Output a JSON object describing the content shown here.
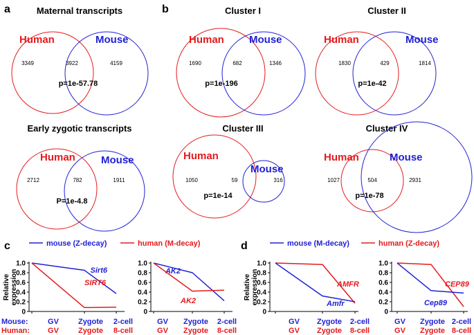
{
  "panels": {
    "a": "a",
    "b": "b",
    "c": "c",
    "d": "d"
  },
  "colors": {
    "human": "#e41a1c",
    "mouse": "#1f1fd6",
    "axis": "#000000"
  },
  "chart_data": [
    {
      "type": "venn",
      "title": "Maternal transcripts",
      "sets": [
        "Human",
        "Mouse"
      ],
      "human_only": "3349",
      "overlap": "3922",
      "mouse_only": "4159",
      "p_value": "p=1e-57.78"
    },
    {
      "type": "venn",
      "title": "Early zygotic transcripts",
      "sets": [
        "Human",
        "Mouse"
      ],
      "human_only": "2712",
      "overlap": "782",
      "mouse_only": "1911",
      "p_value": "P=1e-4.8"
    },
    {
      "type": "venn",
      "title": "Cluster I",
      "sets": [
        "Human",
        "Mouse"
      ],
      "human_only": "1690",
      "overlap": "682",
      "mouse_only": "1346",
      "p_value": "p=1e-196"
    },
    {
      "type": "venn",
      "title": "Cluster II",
      "sets": [
        "Human",
        "Mouse"
      ],
      "human_only": "1830",
      "overlap": "429",
      "mouse_only": "1814",
      "p_value": "p=1e-42"
    },
    {
      "type": "venn",
      "title": "Cluster III",
      "sets": [
        "Human",
        "Mouse"
      ],
      "human_only": "1050",
      "overlap": "59",
      "mouse_only": "316",
      "p_value": "p=1e-14"
    },
    {
      "type": "venn",
      "title": "Cluster IV",
      "sets": [
        "Human",
        "Mouse"
      ],
      "human_only": "1027",
      "overlap": "504",
      "mouse_only": "2931",
      "p_value": "p=1e-78"
    },
    {
      "type": "line",
      "panel": "c",
      "legend": {
        "mouse": "mouse (Z-decay)",
        "human": "human (M-decay)"
      },
      "ylabel": [
        "Relative",
        "expression"
      ],
      "ylim": [
        0,
        1.0
      ],
      "yticks": [
        "0",
        "0.2",
        "0.4",
        "0.6",
        "0.8",
        "1.0"
      ],
      "x_rows": {
        "mouse_label": "Mouse:",
        "human_label": "Human:",
        "mouse": [
          "GV",
          "Zygote",
          "2-cell"
        ],
        "human": [
          "GV",
          "Zygote",
          "8-cell"
        ]
      },
      "plots": [
        {
          "series": [
            {
              "name": "Sirt6",
              "species": "mouse",
              "values": [
                1.0,
                0.85,
                0.37
              ]
            },
            {
              "name": "SIRT6",
              "species": "human",
              "values": [
                1.0,
                0.08,
                0.09
              ]
            }
          ]
        },
        {
          "series": [
            {
              "name": "AK2",
              "species": "mouse",
              "values": [
                1.0,
                0.8,
                0.22
              ]
            },
            {
              "name": "AK2",
              "species": "human",
              "values": [
                1.0,
                0.42,
                0.44
              ]
            }
          ]
        }
      ]
    },
    {
      "type": "line",
      "panel": "d",
      "legend": {
        "mouse": "mouse (M-decay)",
        "human": "human (Z-decay)"
      },
      "ylabel": [
        "Relative",
        "expression"
      ],
      "ylim": [
        0,
        1.0
      ],
      "yticks": [
        "0",
        "0.2",
        "0.4",
        "0.6",
        "0.8",
        "1.0"
      ],
      "x_rows": {
        "mouse": [
          "GV",
          "Zygote",
          "2-cell"
        ],
        "human": [
          "GV",
          "Zygote",
          "8-cell"
        ]
      },
      "plots": [
        {
          "series": [
            {
              "name": "AMFR",
              "species": "human",
              "values": [
                1.0,
                0.97,
                0.17
              ]
            },
            {
              "name": "Amfr",
              "species": "mouse",
              "values": [
                1.0,
                0.32,
                0.2
              ]
            }
          ]
        },
        {
          "series": [
            {
              "name": "CEP89",
              "species": "human",
              "values": [
                1.0,
                0.97,
                0.1
              ]
            },
            {
              "name": "Cep89",
              "species": "mouse",
              "values": [
                1.0,
                0.43,
                0.38
              ]
            }
          ]
        }
      ]
    }
  ]
}
